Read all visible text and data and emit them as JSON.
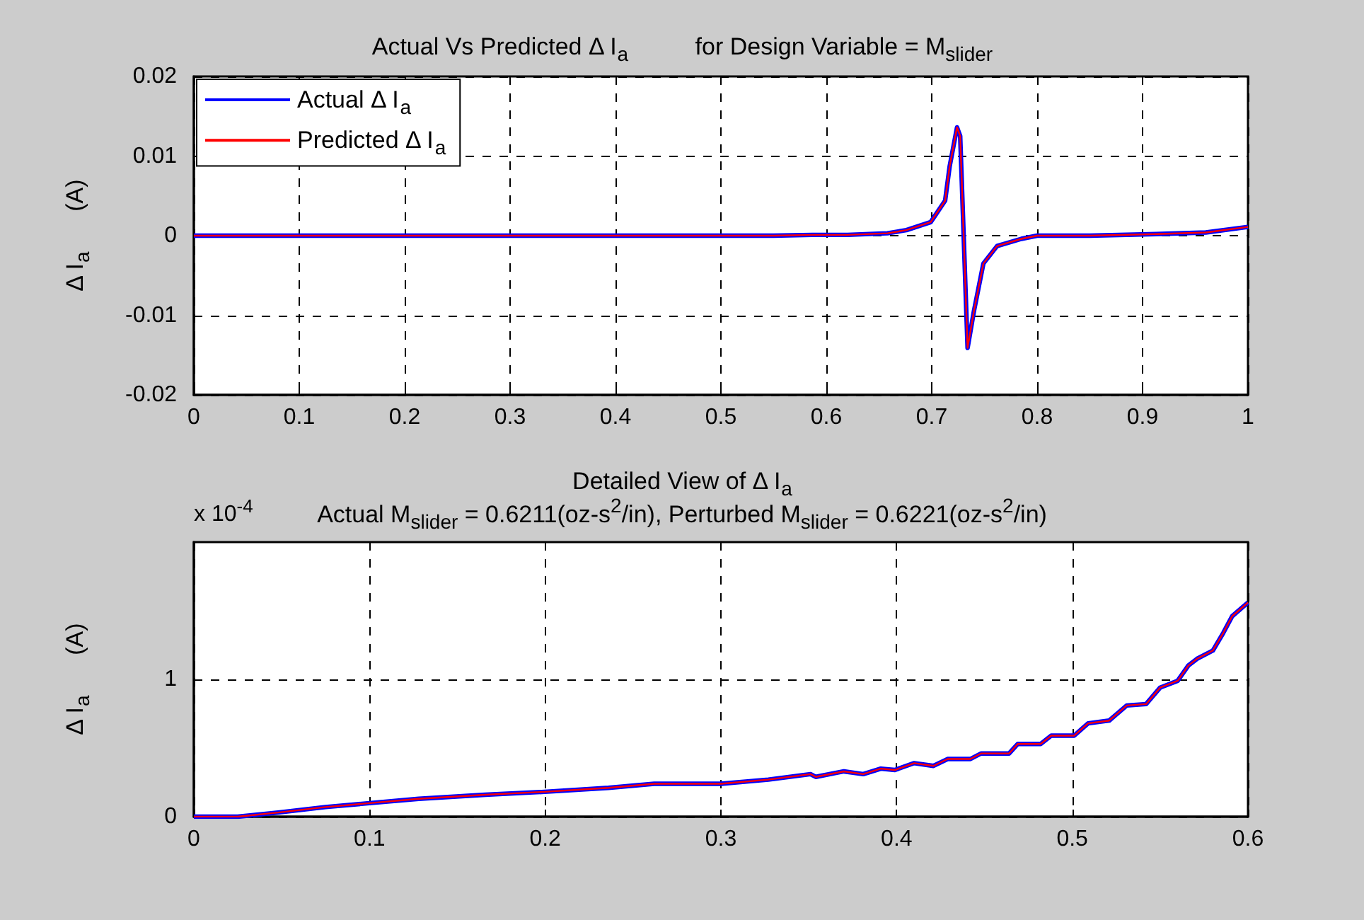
{
  "chart_data": [
    {
      "type": "line",
      "title": "Actual Vs Predicted Δ I$_{a}$          for Design Variable = M$_{slider}$",
      "ylabel": "Δ I$_{a}$      (A)",
      "legend": "top left",
      "grid": true,
      "marker": "none",
      "x": [
        0,
        0.1,
        0.2,
        0.3,
        0.4,
        0.5,
        0.55,
        0.587,
        0.62,
        0.658,
        0.676,
        0.699,
        0.7127,
        0.717,
        0.724,
        0.727,
        0.734,
        0.74,
        0.749,
        0.762,
        0.785,
        0.8,
        0.85,
        0.913,
        0.96,
        1.0
      ],
      "series": [
        {
          "name": "Actual Δ I$_{a}$",
          "color": "#0000ff",
          "values": [
            0,
            0,
            0,
            0,
            0,
            0,
            0,
            0.0001,
            0.0001,
            0.0003,
            0.0007,
            0.0017,
            0.0044,
            0.0087,
            0.0136,
            0.0125,
            -0.0141,
            -0.0095,
            -0.0035,
            -0.0013,
            -0.0004,
            0,
            0,
            0.0002,
            0.0004,
            0.0011
          ]
        },
        {
          "name": "Predicted Δ I$_{a}$",
          "color": "#ff0000",
          "values": [
            0,
            0,
            0,
            0,
            0,
            0,
            0,
            0.0001,
            0.0001,
            0.0003,
            0.0007,
            0.0017,
            0.0044,
            0.0087,
            0.0136,
            0.0125,
            -0.0141,
            -0.0095,
            -0.0035,
            -0.0013,
            -0.0004,
            0,
            0,
            0.0002,
            0.0004,
            0.0011
          ]
        }
      ],
      "xlim": [
        0,
        1
      ],
      "xticks": [
        0,
        0.1,
        0.2,
        0.3,
        0.4,
        0.5,
        0.6,
        0.7,
        0.8,
        0.9,
        1
      ],
      "ylim": [
        -0.02,
        0.02
      ],
      "yticks": [
        -0.02,
        -0.01,
        0,
        0.01,
        0.02
      ]
    },
    {
      "type": "line",
      "title": "Detailed View of Δ I$_{a}$",
      "subtitle": "Actual M$_{slider}$ = 0.6211(oz-s$^{2}$/in), Perturbed M$_{slider}$ = 0.6221(oz-s$^{2}$/in)",
      "ylabel": "Δ I$_{a}$      (A)",
      "annotations": [
        "x 10$^{-4}$"
      ],
      "grid": true,
      "marker": "none",
      "x": [
        0,
        0.025,
        0.048,
        0.075,
        0.101,
        0.128,
        0.166,
        0.198,
        0.236,
        0.262,
        0.3,
        0.327,
        0.351,
        0.354,
        0.37,
        0.381,
        0.391,
        0.399,
        0.41,
        0.421,
        0.429,
        0.442,
        0.448,
        0.464,
        0.469,
        0.482,
        0.488,
        0.501,
        0.509,
        0.521,
        0.531,
        0.542,
        0.55,
        0.56,
        0.566,
        0.571,
        0.58,
        0.586,
        0.591,
        0.6
      ],
      "series": [
        {
          "color": "#0000ff",
          "values": [
            0,
            0,
            0.03,
            0.07,
            0.1,
            0.13,
            0.16,
            0.18,
            0.21,
            0.24,
            0.24,
            0.27,
            0.31,
            0.29,
            0.33,
            0.31,
            0.35,
            0.34,
            0.39,
            0.37,
            0.42,
            0.42,
            0.46,
            0.46,
            0.53,
            0.53,
            0.59,
            0.59,
            0.68,
            0.7,
            0.81,
            0.82,
            0.94,
            0.99,
            1.1,
            1.15,
            1.21,
            1.34,
            1.46,
            1.56
          ]
        },
        {
          "color": "#ff0000",
          "values": [
            0,
            0,
            0.03,
            0.07,
            0.1,
            0.13,
            0.16,
            0.18,
            0.21,
            0.24,
            0.24,
            0.27,
            0.31,
            0.29,
            0.33,
            0.31,
            0.35,
            0.34,
            0.39,
            0.37,
            0.42,
            0.42,
            0.46,
            0.46,
            0.53,
            0.53,
            0.59,
            0.59,
            0.68,
            0.7,
            0.81,
            0.82,
            0.94,
            0.99,
            1.1,
            1.15,
            1.21,
            1.34,
            1.46,
            1.56
          ]
        }
      ],
      "xlim": [
        0,
        0.6
      ],
      "xticks": [
        0,
        0.1,
        0.2,
        0.3,
        0.4,
        0.5,
        0.6
      ],
      "ylim": [
        0,
        2
      ],
      "yticks": [
        0,
        1
      ]
    }
  ]
}
